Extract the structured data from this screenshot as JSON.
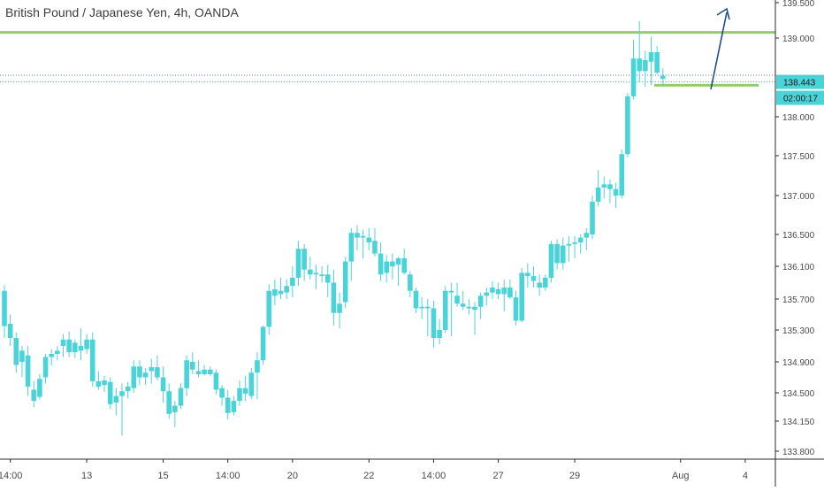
{
  "header": {
    "title": "British Pound / Japanese Yen, 4h, OANDA"
  },
  "colors": {
    "candle": "#4ad4d8",
    "level_line": "#92cc6f",
    "arrow": "#1f4e8c",
    "price_dotted": "#3fa8d9",
    "badge_bg": "#4ad4d8",
    "axis_text": "#4a4a4a",
    "axis_line": "#2a2a2a"
  },
  "price_badge": "138.443",
  "timer_badge": "02:00:17",
  "chart_data": {
    "type": "candlestick",
    "title": "British Pound / Japanese Yen, 4h, OANDA",
    "y_ticks": [
      "139.500",
      "139.000",
      "138.000",
      "137.500",
      "137.000",
      "136.500",
      "136.100",
      "135.700",
      "135.300",
      "134.900",
      "134.500",
      "134.150",
      "133.800"
    ],
    "y_tick_values": [
      139.5,
      139.0,
      138.0,
      137.5,
      137.0,
      136.5,
      136.1,
      135.7,
      135.3,
      134.9,
      134.5,
      134.15,
      133.8
    ],
    "x_ticks": [
      {
        "label": "14:00",
        "index": 1
      },
      {
        "label": "13",
        "index": 14
      },
      {
        "label": "15",
        "index": 27
      },
      {
        "label": "14:00",
        "index": 38
      },
      {
        "label": "20",
        "index": 49
      },
      {
        "label": "22",
        "index": 62
      },
      {
        "label": "14:00",
        "index": 73
      },
      {
        "label": "27",
        "index": 84
      },
      {
        "label": "29",
        "index": 97
      },
      {
        "label": "Aug",
        "index": 115
      },
      {
        "label": "4",
        "index": 126
      }
    ],
    "current_price": 138.443,
    "resistance_level": 139.08,
    "support_level": 138.4,
    "candles": [
      [
        135.8,
        135.87,
        135.2,
        135.35
      ],
      [
        135.38,
        135.5,
        135.1,
        135.2
      ],
      [
        135.2,
        135.27,
        134.76,
        134.86
      ],
      [
        134.9,
        135.1,
        134.7,
        135.04
      ],
      [
        134.98,
        135.1,
        134.46,
        134.58
      ],
      [
        134.54,
        134.65,
        134.32,
        134.4
      ],
      [
        134.45,
        134.74,
        134.42,
        134.68
      ],
      [
        134.7,
        135.0,
        134.62,
        134.96
      ],
      [
        134.96,
        135.06,
        134.85,
        135.0
      ],
      [
        135.0,
        135.1,
        134.92,
        135.04
      ],
      [
        135.1,
        135.25,
        134.96,
        135.18
      ],
      [
        135.18,
        135.28,
        134.96,
        135.02
      ],
      [
        135.02,
        135.18,
        134.95,
        135.14
      ],
      [
        135.1,
        135.32,
        134.92,
        135.04
      ],
      [
        135.06,
        135.25,
        135.0,
        135.18
      ],
      [
        135.18,
        135.27,
        134.58,
        134.65
      ],
      [
        134.65,
        134.78,
        134.54,
        134.58
      ],
      [
        134.6,
        134.72,
        134.51,
        134.66
      ],
      [
        134.64,
        134.7,
        134.3,
        134.36
      ],
      [
        134.38,
        134.56,
        134.22,
        134.46
      ],
      [
        134.46,
        134.62,
        133.98,
        134.52
      ],
      [
        134.52,
        134.64,
        134.43,
        134.58
      ],
      [
        134.56,
        134.92,
        134.5,
        134.84
      ],
      [
        134.84,
        134.92,
        134.6,
        134.7
      ],
      [
        134.7,
        134.82,
        134.6,
        134.76
      ],
      [
        134.78,
        134.94,
        134.62,
        134.83
      ],
      [
        134.83,
        134.98,
        134.66,
        134.7
      ],
      [
        134.7,
        134.84,
        134.38,
        134.52
      ],
      [
        134.52,
        134.62,
        134.18,
        134.24
      ],
      [
        134.26,
        134.4,
        134.08,
        134.34
      ],
      [
        134.34,
        134.62,
        134.3,
        134.56
      ],
      [
        134.56,
        134.98,
        134.46,
        134.92
      ],
      [
        134.9,
        135.02,
        134.74,
        134.8
      ],
      [
        134.78,
        134.92,
        134.7,
        134.74
      ],
      [
        134.74,
        134.86,
        134.72,
        134.8
      ],
      [
        134.8,
        134.84,
        134.72,
        134.74
      ],
      [
        134.76,
        134.8,
        134.48,
        134.54
      ],
      [
        134.56,
        134.6,
        134.34,
        134.44
      ],
      [
        134.44,
        134.54,
        134.17,
        134.25
      ],
      [
        134.26,
        134.46,
        134.22,
        134.4
      ],
      [
        134.4,
        134.66,
        134.34,
        134.56
      ],
      [
        134.56,
        134.72,
        134.4,
        134.49
      ],
      [
        134.46,
        134.82,
        134.42,
        134.76
      ],
      [
        134.76,
        135.02,
        134.42,
        134.92
      ],
      [
        134.92,
        135.36,
        134.86,
        135.34
      ],
      [
        135.34,
        135.88,
        135.24,
        135.8
      ],
      [
        135.82,
        135.94,
        135.62,
        135.74
      ],
      [
        135.76,
        135.96,
        135.7,
        135.8
      ],
      [
        135.78,
        135.94,
        135.7,
        135.86
      ],
      [
        135.86,
        136.1,
        135.72,
        135.96
      ],
      [
        135.96,
        136.42,
        135.86,
        136.32
      ],
      [
        136.32,
        136.38,
        135.92,
        136.06
      ],
      [
        136.06,
        136.22,
        135.94,
        136.0
      ],
      [
        136.0,
        136.12,
        135.82,
        136.02
      ],
      [
        135.98,
        136.1,
        135.9,
        136.0
      ],
      [
        136.0,
        136.12,
        135.72,
        135.9
      ],
      [
        135.9,
        136.06,
        135.36,
        135.52
      ],
      [
        135.52,
        135.78,
        135.32,
        135.64
      ],
      [
        135.66,
        136.22,
        135.58,
        136.16
      ],
      [
        136.16,
        136.58,
        135.92,
        136.52
      ],
      [
        136.52,
        136.62,
        136.3,
        136.46
      ],
      [
        136.46,
        136.56,
        136.2,
        136.48
      ],
      [
        136.46,
        136.58,
        136.3,
        136.4
      ],
      [
        136.42,
        136.58,
        136.22,
        136.26
      ],
      [
        136.26,
        136.4,
        135.92,
        136.0
      ],
      [
        136.02,
        136.24,
        135.9,
        136.16
      ],
      [
        136.16,
        136.26,
        135.94,
        136.1
      ],
      [
        136.12,
        136.22,
        135.86,
        136.2
      ],
      [
        136.2,
        136.32,
        136.0,
        136.02
      ],
      [
        136.0,
        136.04,
        135.72,
        135.8
      ],
      [
        135.8,
        135.84,
        135.52,
        135.58
      ],
      [
        135.58,
        135.72,
        135.44,
        135.6
      ],
      [
        135.6,
        135.7,
        135.22,
        135.58
      ],
      [
        135.58,
        135.68,
        135.08,
        135.2
      ],
      [
        135.2,
        135.44,
        135.12,
        135.3
      ],
      [
        135.3,
        135.86,
        135.26,
        135.8
      ],
      [
        135.8,
        135.9,
        135.22,
        135.78
      ],
      [
        135.74,
        135.9,
        135.6,
        135.64
      ],
      [
        135.64,
        135.8,
        135.56,
        135.6
      ],
      [
        135.6,
        135.7,
        135.5,
        135.58
      ],
      [
        135.56,
        135.66,
        135.24,
        135.6
      ],
      [
        135.6,
        135.78,
        135.44,
        135.74
      ],
      [
        135.74,
        135.84,
        135.62,
        135.78
      ],
      [
        135.78,
        135.92,
        135.7,
        135.84
      ],
      [
        135.82,
        135.9,
        135.7,
        135.76
      ],
      [
        135.76,
        135.94,
        135.54,
        135.84
      ],
      [
        135.84,
        135.94,
        135.7,
        135.72
      ],
      [
        135.72,
        135.8,
        135.36,
        135.42
      ],
      [
        135.42,
        136.08,
        135.4,
        136.02
      ],
      [
        136.02,
        136.14,
        135.84,
        135.98
      ],
      [
        135.98,
        136.1,
        135.84,
        135.92
      ],
      [
        135.9,
        136.0,
        135.74,
        135.84
      ],
      [
        135.84,
        136.0,
        135.8,
        135.96
      ],
      [
        135.96,
        136.42,
        135.9,
        136.38
      ],
      [
        136.38,
        136.44,
        136.06,
        136.14
      ],
      [
        136.14,
        136.46,
        136.06,
        136.36
      ],
      [
        136.36,
        136.48,
        136.16,
        136.38
      ],
      [
        136.38,
        136.48,
        136.2,
        136.4
      ],
      [
        136.4,
        136.5,
        136.26,
        136.46
      ],
      [
        136.46,
        136.58,
        136.3,
        136.52
      ],
      [
        136.5,
        137.0,
        136.44,
        136.92
      ],
      [
        136.92,
        137.32,
        136.86,
        137.1
      ],
      [
        137.1,
        137.24,
        136.96,
        137.14
      ],
      [
        137.14,
        137.2,
        136.9,
        137.08
      ],
      [
        137.08,
        137.16,
        136.84,
        137.0
      ],
      [
        137.0,
        137.58,
        136.96,
        137.52
      ],
      [
        137.52,
        138.3,
        137.48,
        138.26
      ],
      [
        138.26,
        138.98,
        138.22,
        138.74
      ],
      [
        138.74,
        139.24,
        138.44,
        138.58
      ],
      [
        138.58,
        138.84,
        138.38,
        138.72
      ],
      [
        138.7,
        139.02,
        138.4,
        138.82
      ],
      [
        138.82,
        138.9,
        138.54,
        138.56
      ],
      [
        138.52,
        138.62,
        138.38,
        138.48
      ]
    ]
  }
}
